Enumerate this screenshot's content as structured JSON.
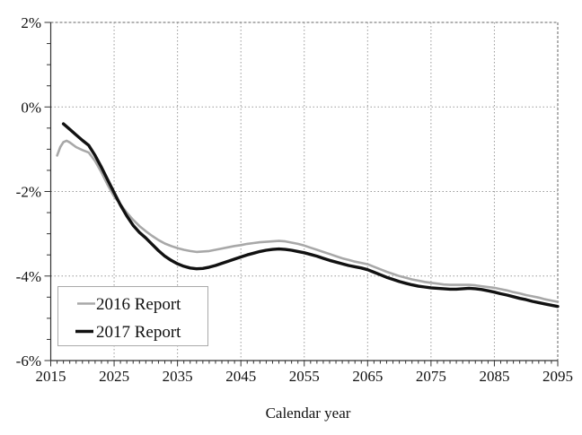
{
  "figure": {
    "background": "#ffffff",
    "axis_color": "#333333",
    "grid_color": "#999999",
    "border_dash_color": "#666666",
    "text_color": "#111111"
  },
  "chart_data": {
    "type": "line",
    "title": "",
    "xlabel": "Calendar year",
    "ylabel": "",
    "xlim": [
      2015,
      2095
    ],
    "ylim": [
      -6,
      2
    ],
    "grid": "dotted, on major ticks",
    "x_major_ticks": [
      2015,
      2025,
      2035,
      2045,
      2055,
      2065,
      2075,
      2085,
      2095
    ],
    "x_tick_labels": [
      "2015",
      "2025",
      "2035",
      "2045",
      "2055",
      "2065",
      "2075",
      "2085",
      "2095"
    ],
    "x_minor_tick_step": 1,
    "y_major_ticks": [
      2,
      0,
      -2,
      -4,
      -6
    ],
    "y_tick_labels": [
      "2%",
      "0%",
      "-2%",
      "-4%",
      "-6%"
    ],
    "y_minor_tick_step": 0.5,
    "legend": {
      "position": "lower-left",
      "entries": [
        "2016 Report",
        "2017 Report"
      ]
    },
    "series": [
      {
        "name": "2016 Report",
        "color": "#a8a8a8",
        "stroke_width": 2.6,
        "points": [
          [
            2016,
            -1.15
          ],
          [
            2016.5,
            -0.95
          ],
          [
            2017,
            -0.83
          ],
          [
            2017.5,
            -0.8
          ],
          [
            2018,
            -0.84
          ],
          [
            2019,
            -0.95
          ],
          [
            2020,
            -1.02
          ],
          [
            2021,
            -1.08
          ],
          [
            2022,
            -1.28
          ],
          [
            2023,
            -1.55
          ],
          [
            2024,
            -1.85
          ],
          [
            2025,
            -2.12
          ],
          [
            2026,
            -2.3
          ],
          [
            2027,
            -2.5
          ],
          [
            2028,
            -2.67
          ],
          [
            2029,
            -2.82
          ],
          [
            2030,
            -2.94
          ],
          [
            2031,
            -3.05
          ],
          [
            2032,
            -3.15
          ],
          [
            2033,
            -3.23
          ],
          [
            2034,
            -3.29
          ],
          [
            2035,
            -3.34
          ],
          [
            2036,
            -3.38
          ],
          [
            2037,
            -3.41
          ],
          [
            2038,
            -3.43
          ],
          [
            2039,
            -3.42
          ],
          [
            2040,
            -3.41
          ],
          [
            2041,
            -3.38
          ],
          [
            2042,
            -3.35
          ],
          [
            2043,
            -3.32
          ],
          [
            2044,
            -3.29
          ],
          [
            2045,
            -3.27
          ],
          [
            2046,
            -3.24
          ],
          [
            2047,
            -3.22
          ],
          [
            2048,
            -3.2
          ],
          [
            2049,
            -3.19
          ],
          [
            2050,
            -3.18
          ],
          [
            2051,
            -3.17
          ],
          [
            2052,
            -3.18
          ],
          [
            2053,
            -3.21
          ],
          [
            2054,
            -3.24
          ],
          [
            2055,
            -3.28
          ],
          [
            2056,
            -3.33
          ],
          [
            2057,
            -3.38
          ],
          [
            2058,
            -3.43
          ],
          [
            2059,
            -3.48
          ],
          [
            2060,
            -3.53
          ],
          [
            2061,
            -3.58
          ],
          [
            2062,
            -3.62
          ],
          [
            2063,
            -3.66
          ],
          [
            2064,
            -3.69
          ],
          [
            2065,
            -3.72
          ],
          [
            2066,
            -3.78
          ],
          [
            2067,
            -3.84
          ],
          [
            2068,
            -3.9
          ],
          [
            2069,
            -3.95
          ],
          [
            2070,
            -4.0
          ],
          [
            2071,
            -4.04
          ],
          [
            2072,
            -4.08
          ],
          [
            2073,
            -4.11
          ],
          [
            2074,
            -4.14
          ],
          [
            2075,
            -4.16
          ],
          [
            2076,
            -4.18
          ],
          [
            2077,
            -4.2
          ],
          [
            2078,
            -4.21
          ],
          [
            2079,
            -4.21
          ],
          [
            2080,
            -4.21
          ],
          [
            2081,
            -4.21
          ],
          [
            2082,
            -4.22
          ],
          [
            2083,
            -4.24
          ],
          [
            2084,
            -4.26
          ],
          [
            2085,
            -4.28
          ],
          [
            2086,
            -4.31
          ],
          [
            2087,
            -4.34
          ],
          [
            2088,
            -4.38
          ],
          [
            2089,
            -4.41
          ],
          [
            2090,
            -4.45
          ],
          [
            2091,
            -4.48
          ],
          [
            2092,
            -4.51
          ],
          [
            2093,
            -4.55
          ],
          [
            2094,
            -4.58
          ],
          [
            2095,
            -4.61
          ]
        ]
      },
      {
        "name": "2017 Report",
        "color": "#111111",
        "stroke_width": 3.4,
        "points": [
          [
            2017,
            -0.4
          ],
          [
            2018,
            -0.53
          ],
          [
            2019,
            -0.66
          ],
          [
            2020,
            -0.79
          ],
          [
            2021,
            -0.91
          ],
          [
            2022,
            -1.15
          ],
          [
            2023,
            -1.43
          ],
          [
            2024,
            -1.73
          ],
          [
            2025,
            -2.03
          ],
          [
            2026,
            -2.32
          ],
          [
            2027,
            -2.58
          ],
          [
            2028,
            -2.8
          ],
          [
            2029,
            -2.97
          ],
          [
            2030,
            -3.1
          ],
          [
            2031,
            -3.25
          ],
          [
            2032,
            -3.4
          ],
          [
            2033,
            -3.53
          ],
          [
            2034,
            -3.63
          ],
          [
            2035,
            -3.71
          ],
          [
            2036,
            -3.77
          ],
          [
            2037,
            -3.81
          ],
          [
            2038,
            -3.83
          ],
          [
            2039,
            -3.82
          ],
          [
            2040,
            -3.79
          ],
          [
            2041,
            -3.75
          ],
          [
            2042,
            -3.7
          ],
          [
            2043,
            -3.65
          ],
          [
            2044,
            -3.6
          ],
          [
            2045,
            -3.55
          ],
          [
            2046,
            -3.5
          ],
          [
            2047,
            -3.46
          ],
          [
            2048,
            -3.42
          ],
          [
            2049,
            -3.39
          ],
          [
            2050,
            -3.37
          ],
          [
            2051,
            -3.36
          ],
          [
            2052,
            -3.37
          ],
          [
            2053,
            -3.39
          ],
          [
            2054,
            -3.42
          ],
          [
            2055,
            -3.45
          ],
          [
            2056,
            -3.49
          ],
          [
            2057,
            -3.53
          ],
          [
            2058,
            -3.58
          ],
          [
            2059,
            -3.63
          ],
          [
            2060,
            -3.67
          ],
          [
            2061,
            -3.71
          ],
          [
            2062,
            -3.75
          ],
          [
            2063,
            -3.78
          ],
          [
            2064,
            -3.81
          ],
          [
            2065,
            -3.85
          ],
          [
            2066,
            -3.91
          ],
          [
            2067,
            -3.97
          ],
          [
            2068,
            -4.03
          ],
          [
            2069,
            -4.08
          ],
          [
            2070,
            -4.13
          ],
          [
            2071,
            -4.17
          ],
          [
            2072,
            -4.21
          ],
          [
            2073,
            -4.24
          ],
          [
            2074,
            -4.26
          ],
          [
            2075,
            -4.28
          ],
          [
            2076,
            -4.29
          ],
          [
            2077,
            -4.3
          ],
          [
            2078,
            -4.31
          ],
          [
            2079,
            -4.31
          ],
          [
            2080,
            -4.3
          ],
          [
            2081,
            -4.29
          ],
          [
            2082,
            -4.3
          ],
          [
            2083,
            -4.32
          ],
          [
            2084,
            -4.35
          ],
          [
            2085,
            -4.38
          ],
          [
            2086,
            -4.42
          ],
          [
            2087,
            -4.45
          ],
          [
            2088,
            -4.49
          ],
          [
            2089,
            -4.53
          ],
          [
            2090,
            -4.56
          ],
          [
            2091,
            -4.6
          ],
          [
            2092,
            -4.63
          ],
          [
            2093,
            -4.66
          ],
          [
            2094,
            -4.69
          ],
          [
            2095,
            -4.72
          ]
        ]
      }
    ]
  }
}
